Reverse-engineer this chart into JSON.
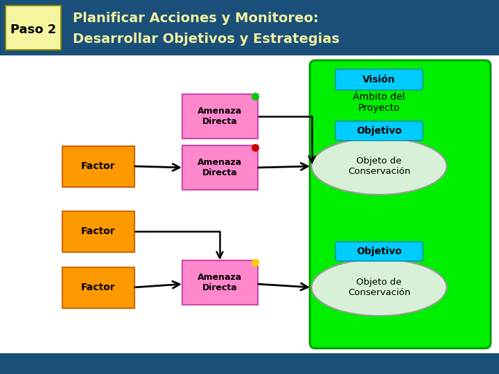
{
  "title_bg_color": "#1a4f7a",
  "title_text_color": "#f0f0a0",
  "paso_bg_color": "#f5f5a0",
  "paso_text_color": "#000000",
  "paso_label": "Paso 2",
  "title_line1": "Planificar Acciones y Monitoreo:",
  "title_line2": "Desarrollar Objetivos y Estrategias",
  "body_bg_color": "#ffffff",
  "footer_color": "#1a4f7a",
  "green_panel_color": "#00ee00",
  "green_panel_border": "#009900",
  "vision_box_color": "#00ccff",
  "objetivo_box_color": "#00ccff",
  "ellipse_fill": "#d8f0d8",
  "ellipse_border": "#aaaaaa",
  "factor_color": "#ff9900",
  "amenaza_color": "#ff88cc",
  "dot_colors": [
    "#00cc00",
    "#cc0000",
    "#ffcc00"
  ],
  "arrow_color": "#000000"
}
